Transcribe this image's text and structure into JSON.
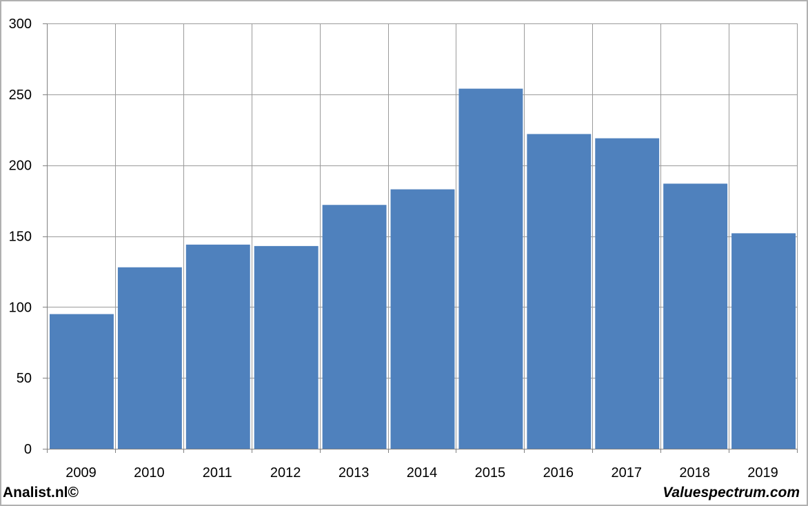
{
  "chart_data": {
    "type": "bar",
    "categories": [
      "2009",
      "2010",
      "2011",
      "2012",
      "2013",
      "2014",
      "2015",
      "2016",
      "2017",
      "2018",
      "2019"
    ],
    "values": [
      95,
      128,
      144,
      143,
      172,
      183,
      254,
      222,
      219,
      187,
      152
    ],
    "ylim": [
      0,
      300
    ],
    "yticks": [
      0,
      50,
      100,
      150,
      200,
      250,
      300
    ],
    "bar_color": "#4f81bd",
    "grid_color": "#9a9a9a",
    "grid": true,
    "title": "",
    "xlabel": "",
    "ylabel": ""
  },
  "footer": {
    "left": "Analist.nl©",
    "right": "Valuespectrum.com"
  }
}
